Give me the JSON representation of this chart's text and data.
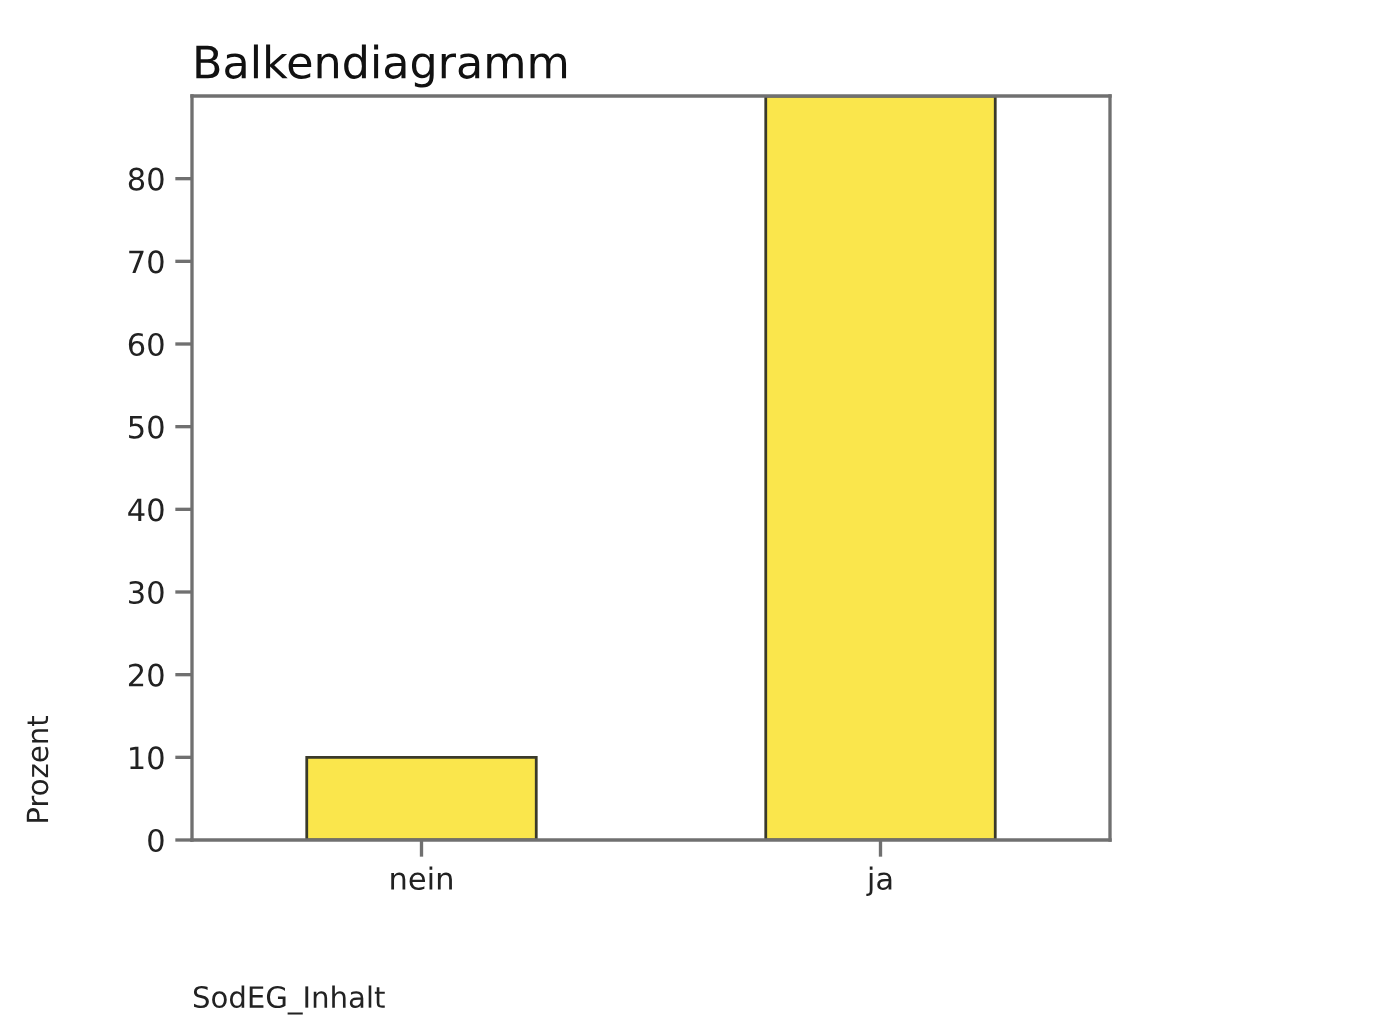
{
  "chart_data": {
    "type": "bar",
    "title": "Balkendiagramm",
    "xlabel": "SodEG_Inhalt",
    "ylabel": "Prozent",
    "categories": [
      "nein",
      "ja"
    ],
    "values": [
      10,
      90
    ],
    "color": "#fae64c",
    "ylim": [
      0,
      90
    ],
    "yticks": [
      0,
      10,
      20,
      30,
      40,
      50,
      60,
      70,
      80
    ],
    "grid": false,
    "legend": false
  }
}
